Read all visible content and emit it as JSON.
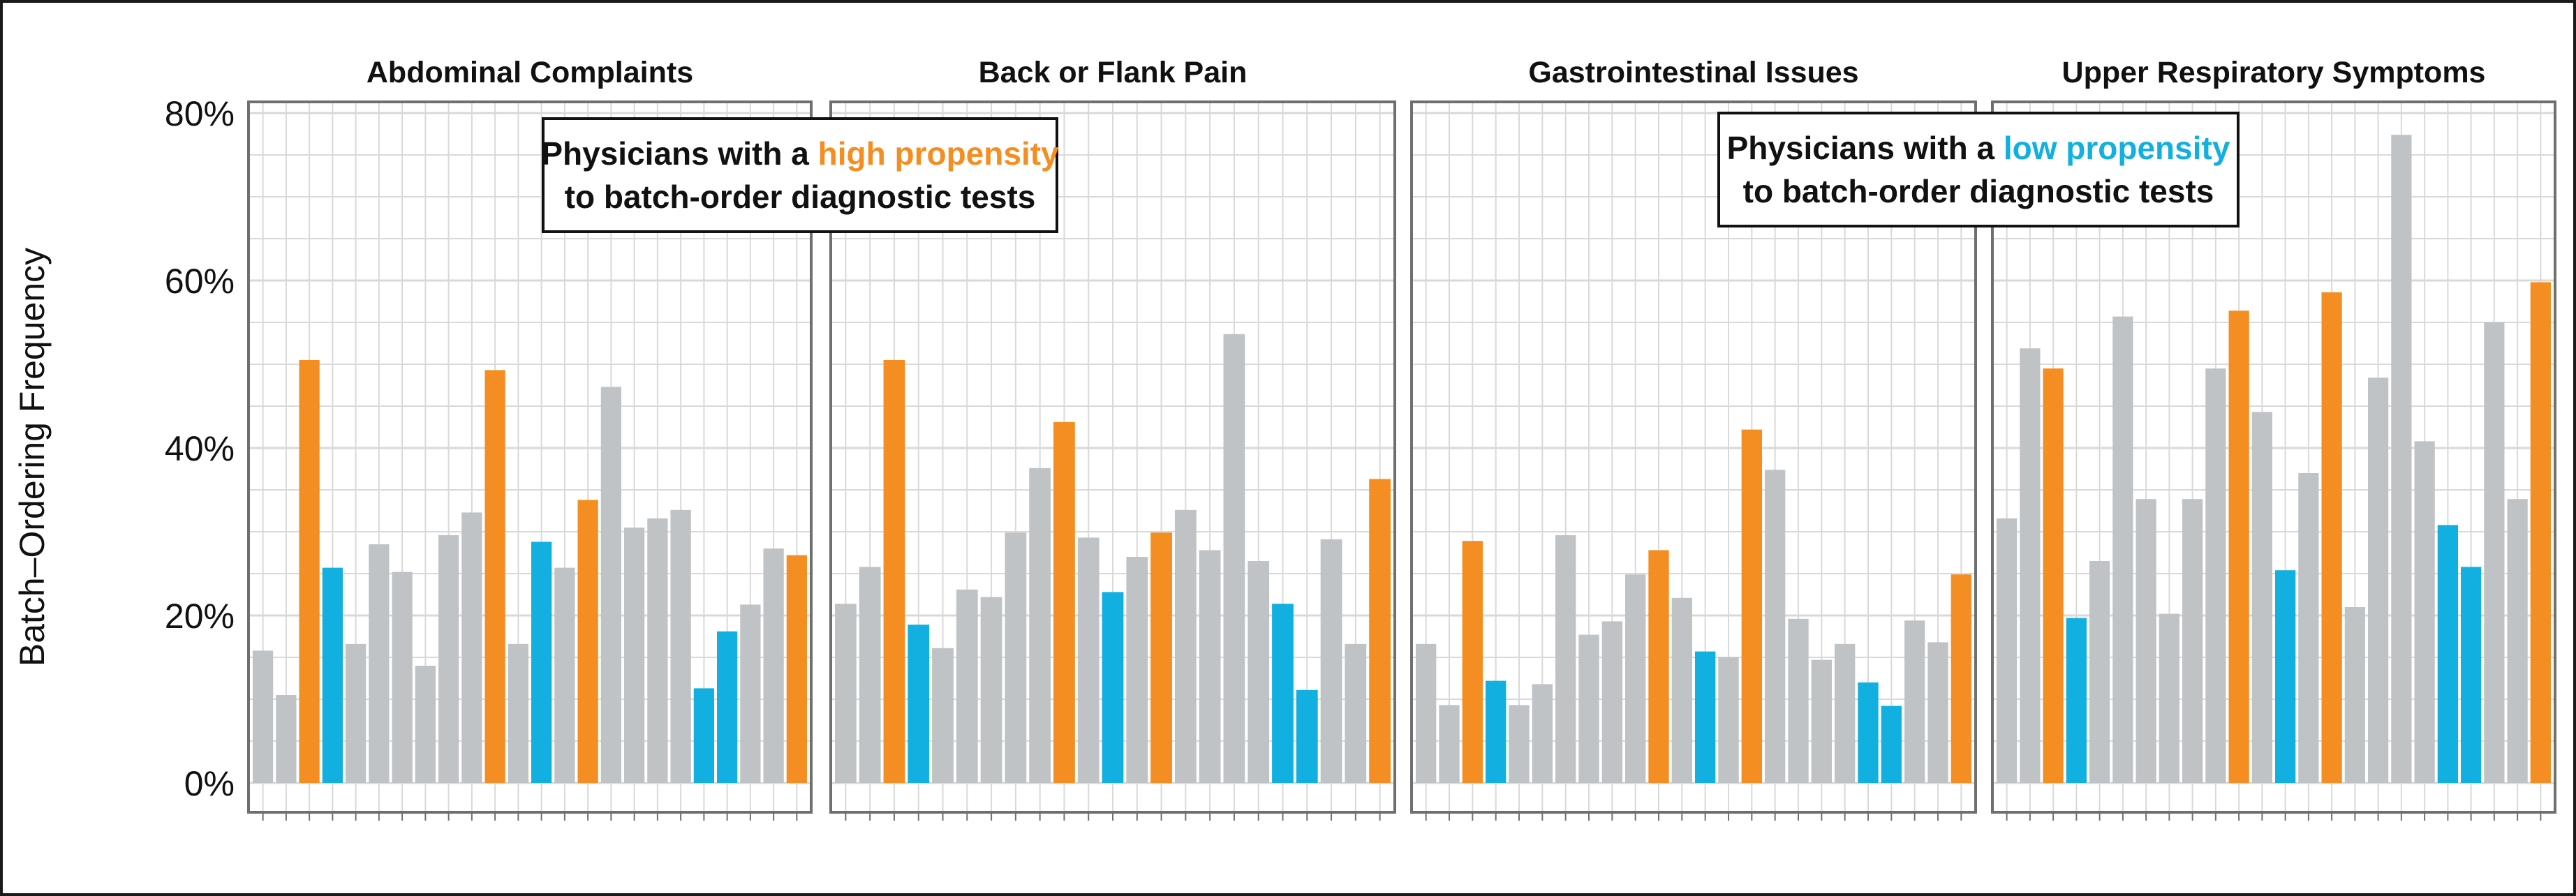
{
  "chart_data": {
    "type": "bar",
    "ylabel": "Batch–Ordering Frequency",
    "ylim": [
      0,
      80
    ],
    "yticks": [
      "0%",
      "20%",
      "40%",
      "60%",
      "80%"
    ],
    "ytick_values": [
      0,
      20,
      40,
      60,
      80
    ],
    "grid": true,
    "colors": {
      "neutral": "#bfc3c6",
      "high": "#f58e22",
      "low": "#12b0e0",
      "panel_border": "#6f6f6f",
      "grid": "#d9d9d9"
    },
    "panels": [
      {
        "title": "Abdominal Complaints",
        "values": [
          15.8,
          10.5,
          50.5,
          25.7,
          16.6,
          28.5,
          25.2,
          14.0,
          29.6,
          32.3,
          49.3,
          16.6,
          28.8,
          25.7,
          33.8,
          47.3,
          30.5,
          31.6,
          32.6,
          11.3,
          18.1,
          21.3,
          28.0,
          27.2
        ],
        "groups": [
          "n",
          "n",
          "h",
          "l",
          "n",
          "n",
          "n",
          "n",
          "n",
          "n",
          "h",
          "n",
          "l",
          "n",
          "h",
          "n",
          "n",
          "n",
          "n",
          "l",
          "l",
          "n",
          "n",
          "h"
        ]
      },
      {
        "title": "Back or Flank Pain",
        "values": [
          21.4,
          25.8,
          50.5,
          18.9,
          16.1,
          23.1,
          22.2,
          29.9,
          37.6,
          43.1,
          29.3,
          22.8,
          27.0,
          29.9,
          32.6,
          27.8,
          53.6,
          26.5,
          21.4,
          11.1,
          29.1,
          16.6,
          36.3
        ],
        "groups": [
          "n",
          "n",
          "h",
          "l",
          "n",
          "n",
          "n",
          "n",
          "n",
          "h",
          "n",
          "l",
          "n",
          "h",
          "n",
          "n",
          "n",
          "n",
          "l",
          "l",
          "n",
          "n",
          "h"
        ]
      },
      {
        "title": "Gastrointestinal Issues",
        "values": [
          16.6,
          9.3,
          28.9,
          12.2,
          9.3,
          11.8,
          29.6,
          17.7,
          19.3,
          24.9,
          27.8,
          22.1,
          15.7,
          15.0,
          42.2,
          37.4,
          19.6,
          14.7,
          16.6,
          12.0,
          9.2,
          19.4,
          16.8,
          24.9
        ],
        "groups": [
          "n",
          "n",
          "h",
          "l",
          "n",
          "n",
          "n",
          "n",
          "n",
          "n",
          "h",
          "n",
          "l",
          "n",
          "h",
          "n",
          "n",
          "n",
          "n",
          "l",
          "l",
          "n",
          "n",
          "h"
        ]
      },
      {
        "title": "Upper Respiratory Symptoms",
        "values": [
          31.6,
          51.9,
          49.5,
          19.7,
          26.5,
          55.7,
          33.9,
          20.2,
          33.9,
          49.5,
          56.4,
          44.3,
          25.4,
          37.0,
          58.6,
          21.0,
          48.4,
          77.4,
          40.8,
          30.8,
          25.8,
          55.0,
          33.9,
          59.8
        ],
        "groups": [
          "n",
          "n",
          "h",
          "l",
          "n",
          "n",
          "n",
          "n",
          "n",
          "n",
          "h",
          "n",
          "l",
          "n",
          "h",
          "n",
          "n",
          "n",
          "n",
          "l",
          "l",
          "n",
          "n",
          "h"
        ]
      }
    ],
    "annotations": [
      {
        "prefix": "Physicians with a ",
        "highlight": "high propensity",
        "line2": "to batch-order diagnostic tests",
        "highlight_color": "#f58e22"
      },
      {
        "prefix": "Physicians with a ",
        "highlight": "low propensity",
        "line2": "to batch-order diagnostic tests",
        "highlight_color": "#12b0e0"
      }
    ]
  }
}
